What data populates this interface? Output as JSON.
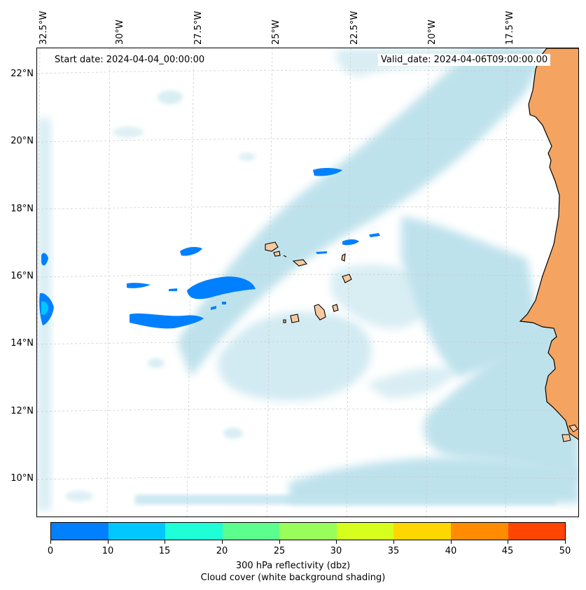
{
  "map": {
    "start_date": "Start date: 2024-04-04_00:00:00",
    "valid_date": "Valid_date: 2024-04-06T09:00:00.00",
    "lon_labels": [
      "32.5°W",
      "30°W",
      "27.5°W",
      "25°W",
      "22.5°W",
      "20°W",
      "17.5°W"
    ],
    "lat_labels": [
      "22°N",
      "20°N",
      "18°N",
      "16°N",
      "14°N",
      "12°N",
      "10°N"
    ],
    "colors": {
      "land_africa": "#f4a460",
      "land_islands": "#f8c9a0",
      "cloud": "#b7dfea",
      "reflectivity_0_10": "#0080ff",
      "reflectivity_10_15": "#00c8ff",
      "coastline": "#000000",
      "gridline": "#c8c8c8"
    }
  },
  "colorbar": {
    "ticks": [
      "0",
      "10",
      "15",
      "20",
      "25",
      "30",
      "35",
      "40",
      "45",
      "50"
    ],
    "colors": [
      "#0080ff",
      "#00c8ff",
      "#1effd8",
      "#5cff8e",
      "#98ff5a",
      "#d6ff1e",
      "#ffd700",
      "#ff8c00",
      "#ff4500"
    ],
    "label_line1": "300 hPa reflectivity (dbz)",
    "label_line2": "Cloud cover (white background shading)"
  }
}
